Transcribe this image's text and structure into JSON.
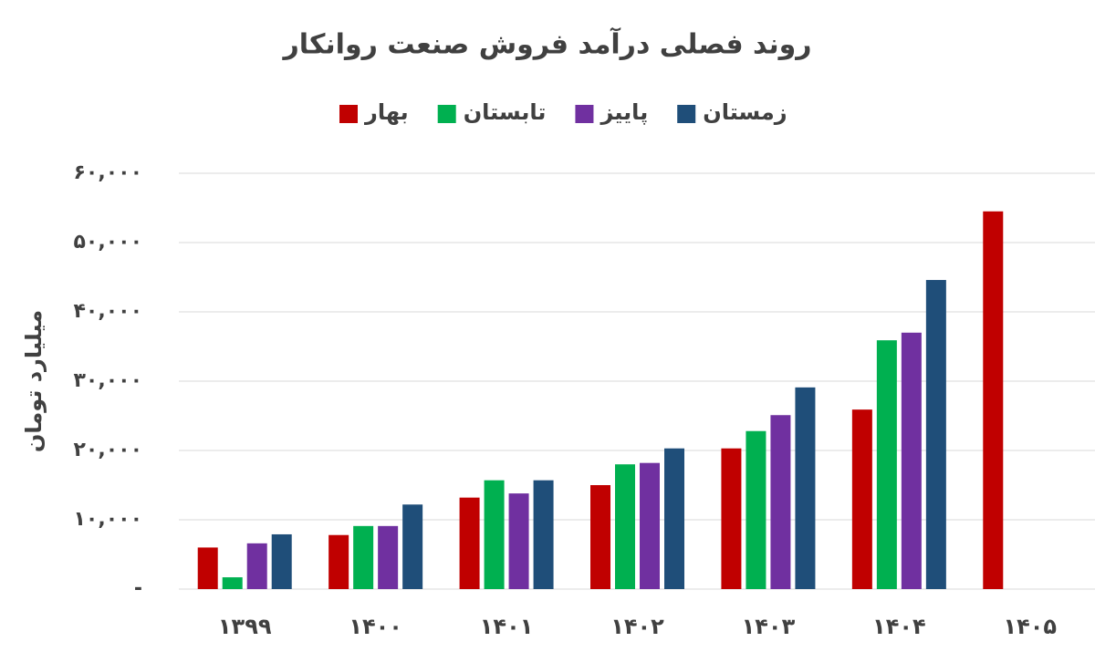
{
  "chart_data": {
    "type": "bar",
    "title": "روند فصلی درآمد فروش صنعت روانکار",
    "y_label": "میلیارد تومان",
    "categories": [
      "۱۳۹۹",
      "۱۴۰۰",
      "۱۴۰۱",
      "۱۴۰۲",
      "۱۴۰۳",
      "۱۴۰۴",
      "۱۴۰۵"
    ],
    "series": [
      {
        "name": "بهار",
        "color": "#c00000",
        "values": [
          6000,
          7800,
          13200,
          15000,
          20300,
          25900,
          54500
        ]
      },
      {
        "name": "تابستان",
        "color": "#00b050",
        "values": [
          1700,
          9100,
          15700,
          18000,
          22800,
          35900,
          null
        ]
      },
      {
        "name": "پاییز",
        "color": "#7030a0",
        "values": [
          6600,
          9100,
          13800,
          18200,
          25100,
          37000,
          null
        ]
      },
      {
        "name": "زمستان",
        "color": "#1f4e79",
        "values": [
          7900,
          12200,
          15700,
          20300,
          29100,
          44600,
          null
        ]
      }
    ],
    "ylim": [
      0,
      60000
    ],
    "yticks": [
      {
        "value": 0,
        "label": "-"
      },
      {
        "value": 10000,
        "label": "۱۰,۰۰۰"
      },
      {
        "value": 20000,
        "label": "۲۰,۰۰۰"
      },
      {
        "value": 30000,
        "label": "۳۰,۰۰۰"
      },
      {
        "value": 40000,
        "label": "۴۰,۰۰۰"
      },
      {
        "value": 50000,
        "label": "۵۰,۰۰۰"
      },
      {
        "value": 60000,
        "label": "۶۰,۰۰۰"
      }
    ],
    "grid": true
  }
}
